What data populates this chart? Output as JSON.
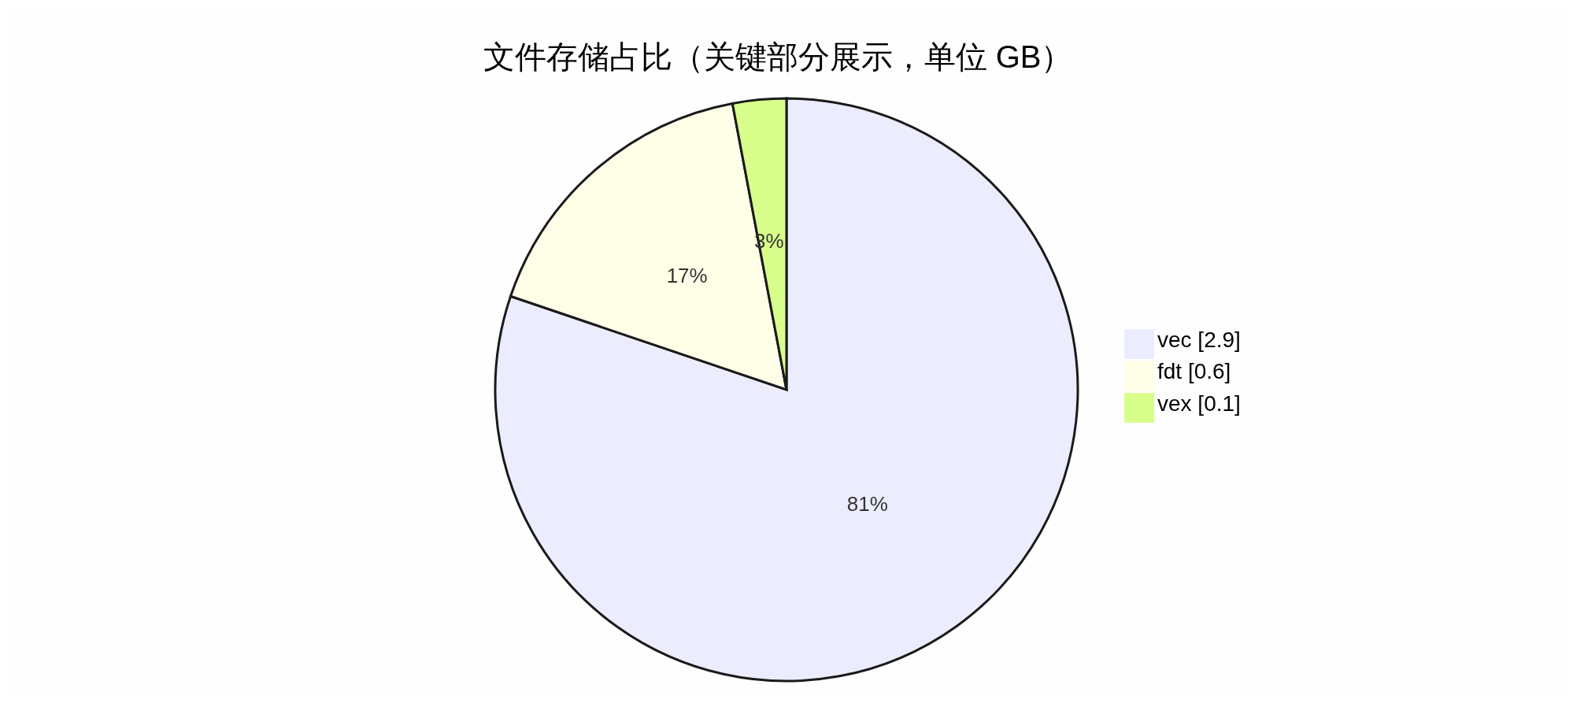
{
  "chart_data": {
    "type": "pie",
    "title": "文件存储占比（关键部分展示，单位 GB）",
    "categories": [
      "vec [2.9]",
      "fdt [0.6]",
      "vex [0.1]"
    ],
    "values": [
      81,
      17,
      3
    ],
    "colors": [
      "#ececff",
      "#ffffe8",
      "#d8ff8c"
    ],
    "value_labels": [
      "81%",
      "17%",
      "3%"
    ],
    "legend": "right"
  }
}
